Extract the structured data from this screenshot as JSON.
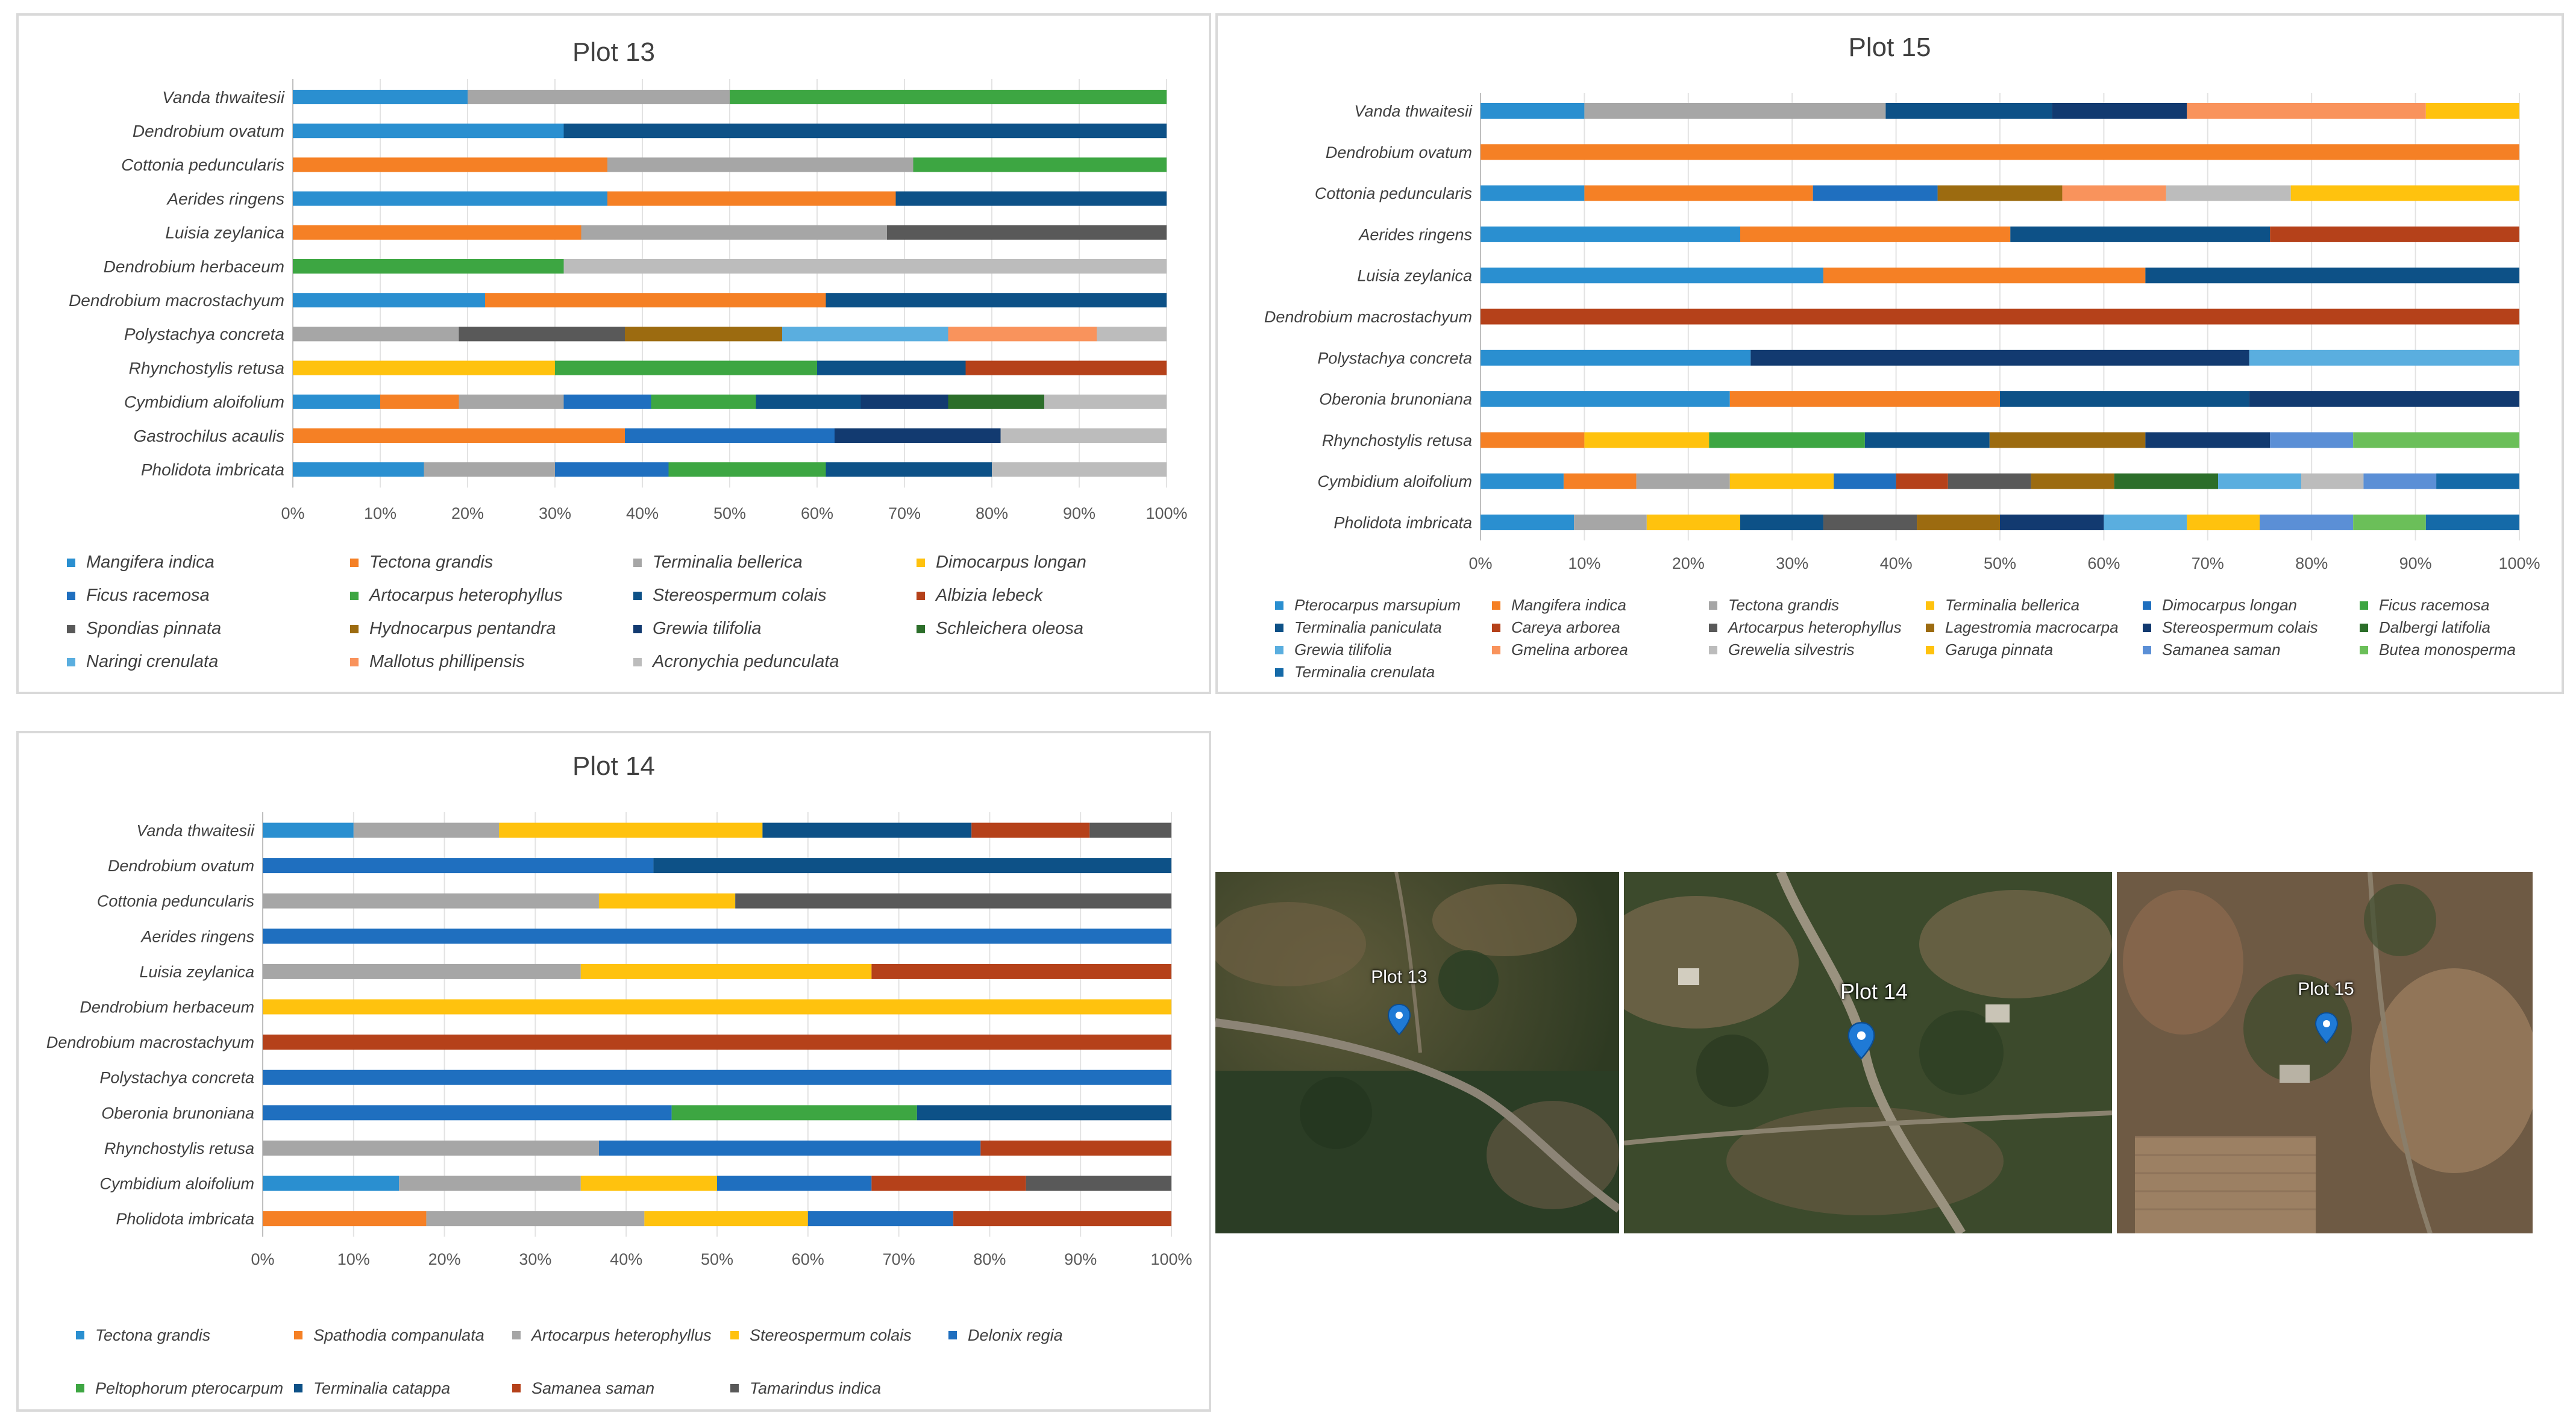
{
  "colors": [
    "#2a8fd0",
    "#f58025",
    "#a6a6a6",
    "#ffc20e",
    "#1f6fbf",
    "#3da642",
    "#0d5187",
    "#b5411a",
    "#595959",
    "#9c6b10",
    "#123a70",
    "#2c6e2a",
    "#5aaedf",
    "#f9935c",
    "#bcbcbc",
    "#5b8fd6",
    "#6bbf59",
    "#156aa8"
  ],
  "chart_data": [
    {
      "id": "plot13",
      "type": "bar",
      "orientation": "horizontal",
      "stacked": "percent",
      "title": "Plot 13",
      "xlim": [
        0,
        100
      ],
      "xticks": [
        "0%",
        "10%",
        "20%",
        "30%",
        "40%",
        "50%",
        "60%",
        "70%",
        "80%",
        "90%",
        "100%"
      ],
      "categories": [
        "Vanda thwaitesii",
        "Dendrobium ovatum",
        "Cottonia peduncularis",
        "Aerides ringens",
        "Luisia zeylanica",
        "Dendrobium herbaceum",
        "Dendrobium macrostachyum",
        "Polystachya concreta",
        "Rhynchostylis retusa",
        "Cymbidium aloifolium",
        "Gastrochilus acaulis",
        "Pholidota imbricata"
      ],
      "series": [
        {
          "name": "Mangifera indica",
          "color_index": 0,
          "values": [
            20,
            31,
            0,
            36,
            0,
            0,
            22,
            0,
            0,
            10,
            0,
            15
          ]
        },
        {
          "name": "Tectona grandis",
          "color_index": 1,
          "values": [
            0,
            0,
            36,
            33,
            33,
            0,
            39,
            0,
            0,
            9,
            38,
            0
          ]
        },
        {
          "name": "Terminalia bellerica",
          "color_index": 2,
          "values": [
            30,
            0,
            35,
            0,
            35,
            0,
            0,
            19,
            0,
            12,
            0,
            15
          ]
        },
        {
          "name": "Dimocarpus longan",
          "color_index": 3,
          "values": [
            0,
            0,
            0,
            0,
            0,
            0,
            0,
            0,
            30,
            0,
            0,
            0
          ]
        },
        {
          "name": "Ficus racemosa",
          "color_index": 4,
          "values": [
            0,
            0,
            0,
            0,
            0,
            0,
            0,
            0,
            0,
            10,
            24,
            13
          ]
        },
        {
          "name": "Artocarpus heterophyllus",
          "color_index": 5,
          "values": [
            50,
            0,
            29,
            0,
            0,
            31,
            0,
            0,
            30,
            12,
            0,
            18
          ]
        },
        {
          "name": "Stereospermum colais",
          "color_index": 6,
          "values": [
            0,
            69,
            0,
            31,
            0,
            0,
            39,
            0,
            17,
            12,
            0,
            19
          ]
        },
        {
          "name": "Albizia lebeck",
          "color_index": 7,
          "values": [
            0,
            0,
            0,
            0,
            0,
            0,
            0,
            0,
            23,
            0,
            0,
            0
          ]
        },
        {
          "name": "Spondias pinnata",
          "color_index": 8,
          "values": [
            0,
            0,
            0,
            0,
            32,
            0,
            0,
            19,
            0,
            0,
            0,
            0
          ]
        },
        {
          "name": "Hydnocarpus pentandra",
          "color_index": 9,
          "values": [
            0,
            0,
            0,
            0,
            0,
            0,
            0,
            18,
            0,
            0,
            0,
            0
          ]
        },
        {
          "name": "Grewia tilifolia",
          "color_index": 10,
          "values": [
            0,
            0,
            0,
            0,
            0,
            0,
            0,
            0,
            0,
            10,
            19,
            0
          ]
        },
        {
          "name": "Schleichera oleosa",
          "color_index": 11,
          "values": [
            0,
            0,
            0,
            0,
            0,
            0,
            0,
            0,
            0,
            11,
            0,
            0
          ]
        },
        {
          "name": "Naringi crenulata",
          "color_index": 12,
          "values": [
            0,
            0,
            0,
            0,
            0,
            0,
            0,
            19,
            0,
            0,
            0,
            0
          ]
        },
        {
          "name": "Mallotus phillipensis",
          "color_index": 13,
          "values": [
            0,
            0,
            0,
            0,
            0,
            0,
            0,
            17,
            0,
            0,
            0,
            0
          ]
        },
        {
          "name": "Acronychia pedunculata",
          "color_index": 14,
          "values": [
            0,
            0,
            0,
            0,
            0,
            69,
            0,
            8,
            0,
            14,
            19,
            20
          ]
        }
      ]
    },
    {
      "id": "plot15",
      "type": "bar",
      "orientation": "horizontal",
      "stacked": "percent",
      "title": "Plot 15",
      "xlim": [
        0,
        100
      ],
      "xticks": [
        "0%",
        "10%",
        "20%",
        "30%",
        "40%",
        "50%",
        "60%",
        "70%",
        "80%",
        "90%",
        "100%"
      ],
      "categories": [
        "Vanda thwaitesii",
        "Dendrobium ovatum",
        "Cottonia peduncularis",
        "Aerides ringens",
        "Luisia zeylanica",
        "Dendrobium macrostachyum",
        "Polystachya concreta",
        "Oberonia brunoniana",
        "Rhynchostylis retusa",
        "Cymbidium aloifolium",
        "Pholidota imbricata"
      ],
      "series": [
        {
          "name": "Pterocarpus marsupium",
          "color_index": 0,
          "values": [
            10,
            0,
            10,
            25,
            33,
            0,
            26,
            24,
            0,
            8,
            9
          ]
        },
        {
          "name": "Mangifera indica",
          "color_index": 1,
          "values": [
            0,
            100,
            22,
            26,
            31,
            0,
            0,
            26,
            10,
            7,
            0
          ]
        },
        {
          "name": "Tectona grandis",
          "color_index": 2,
          "values": [
            29,
            0,
            0,
            0,
            0,
            0,
            0,
            0,
            0,
            9,
            7
          ]
        },
        {
          "name": "Terminalia bellerica",
          "color_index": 3,
          "values": [
            0,
            0,
            0,
            0,
            0,
            0,
            0,
            0,
            12,
            10,
            9
          ]
        },
        {
          "name": "Dimocarpus longan",
          "color_index": 4,
          "values": [
            0,
            0,
            12,
            0,
            0,
            0,
            0,
            0,
            0,
            6,
            0
          ]
        },
        {
          "name": "Ficus racemosa",
          "color_index": 5,
          "values": [
            0,
            0,
            0,
            0,
            0,
            0,
            0,
            0,
            15,
            0,
            0
          ]
        },
        {
          "name": "Terminalia paniculata",
          "color_index": 6,
          "values": [
            16,
            0,
            0,
            25,
            36,
            0,
            0,
            24,
            12,
            0,
            8
          ]
        },
        {
          "name": "Careya arborea",
          "color_index": 7,
          "values": [
            0,
            0,
            0,
            24,
            0,
            100,
            0,
            0,
            0,
            5,
            0
          ]
        },
        {
          "name": "Artocarpus heterophyllus",
          "color_index": 8,
          "values": [
            0,
            0,
            0,
            0,
            0,
            0,
            0,
            0,
            0,
            8,
            9
          ]
        },
        {
          "name": "Lagestromia macrocarpa",
          "color_index": 9,
          "values": [
            0,
            0,
            12,
            0,
            0,
            0,
            0,
            0,
            15,
            8,
            8
          ]
        },
        {
          "name": "Stereospermum colais",
          "color_index": 10,
          "values": [
            13,
            0,
            0,
            0,
            0,
            0,
            48,
            26,
            12,
            0,
            10
          ]
        },
        {
          "name": "Dalbergi latifolia",
          "color_index": 11,
          "values": [
            0,
            0,
            0,
            0,
            0,
            0,
            0,
            0,
            0,
            10,
            0
          ]
        },
        {
          "name": "Grewia tilifolia",
          "color_index": 12,
          "values": [
            0,
            0,
            0,
            0,
            0,
            0,
            26,
            0,
            0,
            8,
            8
          ]
        },
        {
          "name": "Gmelina arborea",
          "color_index": 13,
          "values": [
            23,
            0,
            10,
            0,
            0,
            0,
            0,
            0,
            0,
            0,
            0
          ]
        },
        {
          "name": "Grewelia silvestris",
          "color_index": 14,
          "values": [
            0,
            0,
            12,
            0,
            0,
            0,
            0,
            0,
            0,
            6,
            0
          ]
        },
        {
          "name": "Garuga pinnata",
          "color_index": 3,
          "values": [
            9,
            0,
            22,
            0,
            0,
            0,
            0,
            0,
            0,
            0,
            7
          ]
        },
        {
          "name": "Samanea saman",
          "color_index": 15,
          "values": [
            0,
            0,
            0,
            0,
            0,
            0,
            0,
            0,
            8,
            7,
            9
          ]
        },
        {
          "name": "Butea monosperma",
          "color_index": 16,
          "values": [
            0,
            0,
            0,
            0,
            0,
            0,
            0,
            0,
            16,
            0,
            7
          ]
        },
        {
          "name": "Terminalia crenulata",
          "color_index": 17,
          "values": [
            0,
            0,
            0,
            0,
            0,
            0,
            0,
            0,
            0,
            8,
            9
          ]
        }
      ]
    },
    {
      "id": "plot14",
      "type": "bar",
      "orientation": "horizontal",
      "stacked": "percent",
      "title": "Plot 14",
      "xlim": [
        0,
        100
      ],
      "xticks": [
        "0%",
        "10%",
        "20%",
        "30%",
        "40%",
        "50%",
        "60%",
        "70%",
        "80%",
        "90%",
        "100%"
      ],
      "categories": [
        "Vanda thwaitesii",
        "Dendrobium ovatum",
        "Cottonia peduncularis",
        "Aerides ringens",
        "Luisia zeylanica",
        "Dendrobium herbaceum",
        "Dendrobium macrostachyum",
        "Polystachya concreta",
        "Oberonia brunoniana",
        "Rhynchostylis retusa",
        "Cymbidium aloifolium",
        "Pholidota imbricata"
      ],
      "series": [
        {
          "name": "Tectona grandis",
          "color_index": 0,
          "values": [
            10,
            0,
            0,
            0,
            0,
            0,
            0,
            0,
            0,
            0,
            15,
            0
          ]
        },
        {
          "name": "Spathodia companulata",
          "color_index": 1,
          "values": [
            0,
            0,
            0,
            0,
            0,
            0,
            0,
            0,
            0,
            0,
            0,
            18
          ]
        },
        {
          "name": "Artocarpus heterophyllus",
          "color_index": 2,
          "values": [
            16,
            0,
            37,
            0,
            35,
            0,
            0,
            0,
            0,
            37,
            20,
            24
          ]
        },
        {
          "name": "Stereospermum colais",
          "color_index": 3,
          "values": [
            29,
            0,
            15,
            0,
            32,
            100,
            0,
            0,
            0,
            0,
            15,
            18
          ]
        },
        {
          "name": "Delonix regia",
          "color_index": 4,
          "values": [
            0,
            43,
            0,
            100,
            0,
            0,
            0,
            100,
            45,
            42,
            17,
            16
          ]
        },
        {
          "name": "Peltophorum pterocarpum",
          "color_index": 5,
          "values": [
            0,
            0,
            0,
            0,
            0,
            0,
            0,
            0,
            27,
            0,
            0,
            0
          ]
        },
        {
          "name": "Terminalia catappa",
          "color_index": 6,
          "values": [
            23,
            57,
            0,
            0,
            0,
            0,
            0,
            0,
            28,
            0,
            0,
            0
          ]
        },
        {
          "name": "Samanea saman",
          "color_index": 7,
          "values": [
            13,
            0,
            0,
            0,
            33,
            0,
            100,
            0,
            0,
            21,
            17,
            24
          ]
        },
        {
          "name": "Tamarindus indica",
          "color_index": 8,
          "values": [
            9,
            0,
            48,
            0,
            0,
            0,
            0,
            0,
            0,
            0,
            16,
            0
          ]
        }
      ]
    }
  ],
  "maps": [
    {
      "label": "Plot 13"
    },
    {
      "label": "Plot 14"
    },
    {
      "label": "Plot 15"
    }
  ]
}
